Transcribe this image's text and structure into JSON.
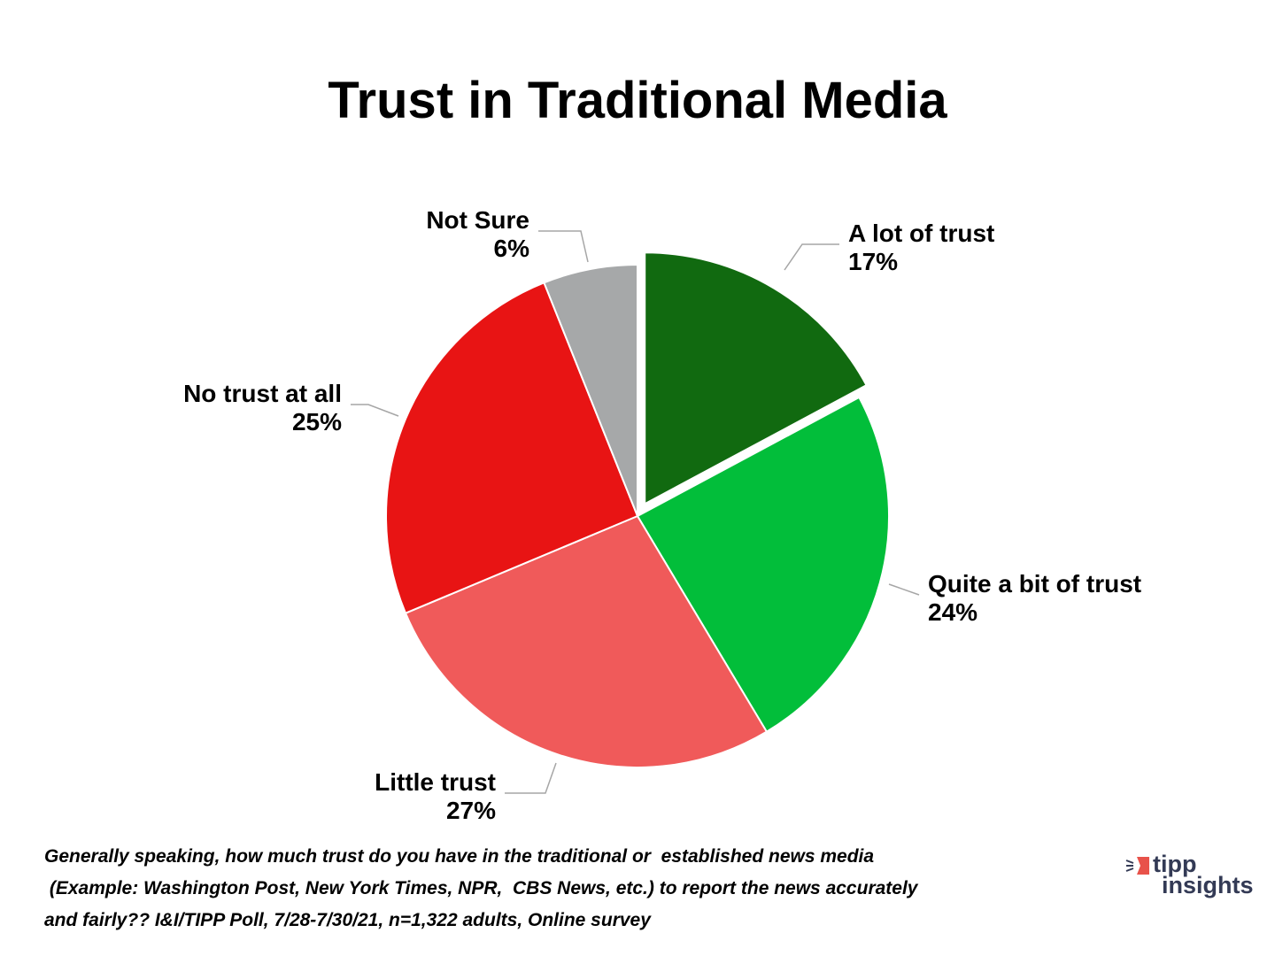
{
  "chart_data": {
    "type": "pie",
    "title": "Trust in Traditional Media",
    "start": "12 o'clock, clockwise",
    "slices": [
      {
        "label": "A lot of trust",
        "value": 17,
        "value_label": "17%",
        "color": "#116a10",
        "exploded": true
      },
      {
        "label": "Quite a bit of trust",
        "value": 24,
        "value_label": "24%",
        "color": "#02be3a",
        "exploded": false
      },
      {
        "label": "Little trust",
        "value": 27,
        "value_label": "27%",
        "color": "#f05a5a",
        "exploded": false
      },
      {
        "label": "No trust at all",
        "value": 25,
        "value_label": "25%",
        "color": "#e81414",
        "exploded": false
      },
      {
        "label": "Not Sure",
        "value": 6,
        "value_label": "6%",
        "color": "#a6a8a9",
        "exploded": false
      }
    ]
  },
  "footnote": "Generally speaking, how much trust do you have in the traditional or  established news media\n (Example: Washington Post, New York Times, NPR,  CBS News, etc.) to report the news accurately\nand fairly?? I&I/TIPP Poll, 7/28-7/30/21, n=1,322 adults, Online survey",
  "logo": {
    "line1": "tipp",
    "line2": "insights",
    "accent": "#e8524a",
    "text_color": "#333a55"
  }
}
